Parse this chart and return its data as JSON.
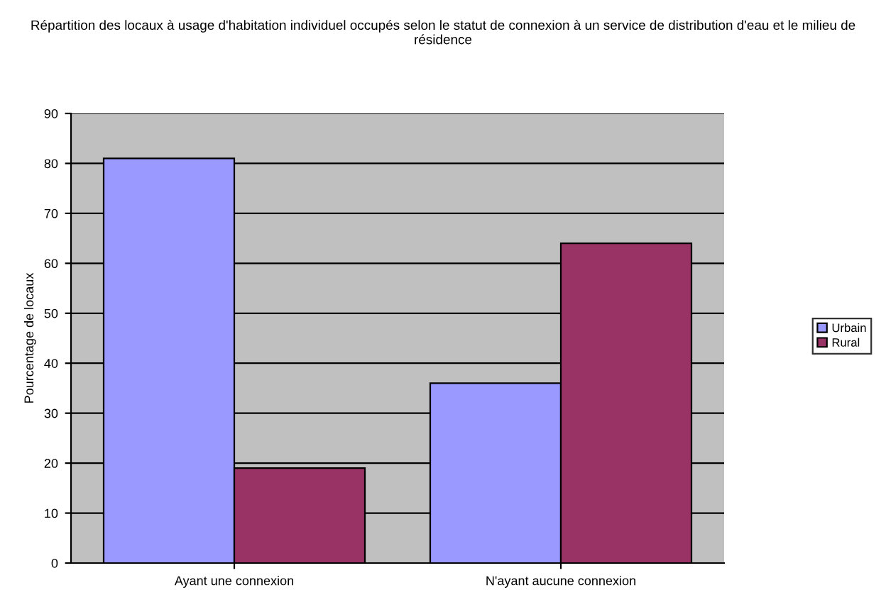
{
  "chart_data": {
    "type": "bar",
    "title": "Répartition des locaux à usage d'habitation individuel occupés selon le statut de connexion à un service de distribution d'eau et le milieu de résidence",
    "ylabel": "Pourcentage de locaux",
    "categories": [
      "Ayant une connexion",
      "N'ayant aucune connexion"
    ],
    "series": [
      {
        "name": "Urbain",
        "color": "#9999ff",
        "values": [
          81,
          36
        ]
      },
      {
        "name": "Rural",
        "color": "#993366",
        "values": [
          19,
          64
        ]
      }
    ],
    "ylim": [
      0,
      90
    ],
    "yticks": [
      0,
      10,
      20,
      30,
      40,
      50,
      60,
      70,
      80,
      90
    ],
    "grid": "y",
    "legend": "right"
  }
}
